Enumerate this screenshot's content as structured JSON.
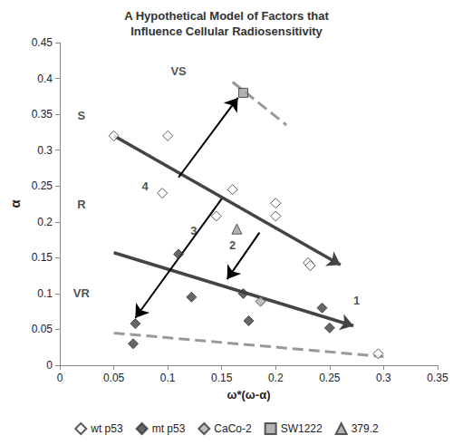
{
  "chart_data": {
    "type": "scatter",
    "title": "A Hypothetical Model of Factors that\nInfluence Cellular Radiosensitivity",
    "x_label": "ω*(ω-α)",
    "y_label": "α",
    "xlim": [
      0,
      0.35
    ],
    "xticks": [
      0,
      0.05,
      0.1,
      0.15,
      0.2,
      0.25,
      0.3,
      0.35
    ],
    "ylim": [
      0,
      0.45
    ],
    "yticks": [
      0,
      0.05,
      0.1,
      0.15,
      0.2,
      0.25,
      0.3,
      0.35,
      0.4,
      0.45
    ],
    "grid": false,
    "legend": "bottom",
    "series": [
      {
        "name": "wt p53",
        "color": "#ffffff",
        "marker": "diamond",
        "x": [
          0.05,
          0.1,
          0.095,
          0.145,
          0.16,
          0.2,
          0.2,
          0.23,
          0.232,
          0.295
        ],
        "y": [
          0.32,
          0.32,
          0.24,
          0.208,
          0.245,
          0.226,
          0.208,
          0.143,
          0.139,
          0.016
        ]
      },
      {
        "name": "mt p53",
        "color": "#404040",
        "marker": "diamond",
        "x": [
          0.07,
          0.068,
          0.11,
          0.122,
          0.17,
          0.175,
          0.243,
          0.25
        ],
        "y": [
          0.058,
          0.03,
          0.155,
          0.095,
          0.1,
          0.062,
          0.08,
          0.052
        ]
      },
      {
        "name": "CaCo-2",
        "color": "#b0b0b0",
        "marker": "diamond",
        "x": [
          0.186
        ],
        "y": [
          0.089
        ]
      },
      {
        "name": "SW1222",
        "color": "#a0a0a0",
        "marker": "square",
        "x": [
          0.17
        ],
        "y": [
          0.38
        ]
      },
      {
        "name": "379.2",
        "color": "#a0a0a0",
        "marker": "triangle",
        "x": [
          0.164
        ],
        "y": [
          0.19
        ]
      }
    ],
    "lines": [
      {
        "x": [
          0.05,
          0.26
        ],
        "y": [
          0.32,
          0.14
        ],
        "color": "#444444",
        "line_style": "solid",
        "marker": "arrow"
      },
      {
        "x": [
          0.05,
          0.272
        ],
        "y": [
          0.157,
          0.055
        ],
        "color": "#444444",
        "line_style": "solid",
        "marker": "arrow"
      },
      {
        "x": [
          0.16,
          0.21
        ],
        "y": [
          0.395,
          0.335
        ],
        "color": "#999999",
        "line_style": "dashed",
        "marker": "none"
      },
      {
        "x": [
          0.05,
          0.3
        ],
        "y": [
          0.045,
          0.012
        ],
        "color": "#999999",
        "line_style": "dashed",
        "marker": "none"
      },
      {
        "x": [
          0.185,
          0.155
        ],
        "y": [
          0.185,
          0.12
        ],
        "color": "#000000",
        "line_style": "solid",
        "marker": "arrow"
      },
      {
        "x": [
          0.15,
          0.07
        ],
        "y": [
          0.232,
          0.066
        ],
        "color": "#000000",
        "line_style": "solid",
        "marker": "arrow"
      },
      {
        "x": [
          0.11,
          0.165
        ],
        "y": [
          0.262,
          0.373
        ],
        "color": "#000000",
        "line_style": "solid",
        "marker": "arrow"
      }
    ],
    "annotations": [
      {
        "text": "VS",
        "x": 0.11,
        "y": 0.41
      },
      {
        "text": "S",
        "x": 0.02,
        "y": 0.348
      },
      {
        "text": "R",
        "x": 0.02,
        "y": 0.225
      },
      {
        "text": "VR",
        "x": 0.02,
        "y": 0.1
      },
      {
        "text": "1",
        "x": 0.275,
        "y": 0.09
      },
      {
        "text": "2",
        "x": 0.16,
        "y": 0.168
      },
      {
        "text": "3",
        "x": 0.124,
        "y": 0.188
      },
      {
        "text": "4",
        "x": 0.079,
        "y": 0.25
      }
    ]
  }
}
